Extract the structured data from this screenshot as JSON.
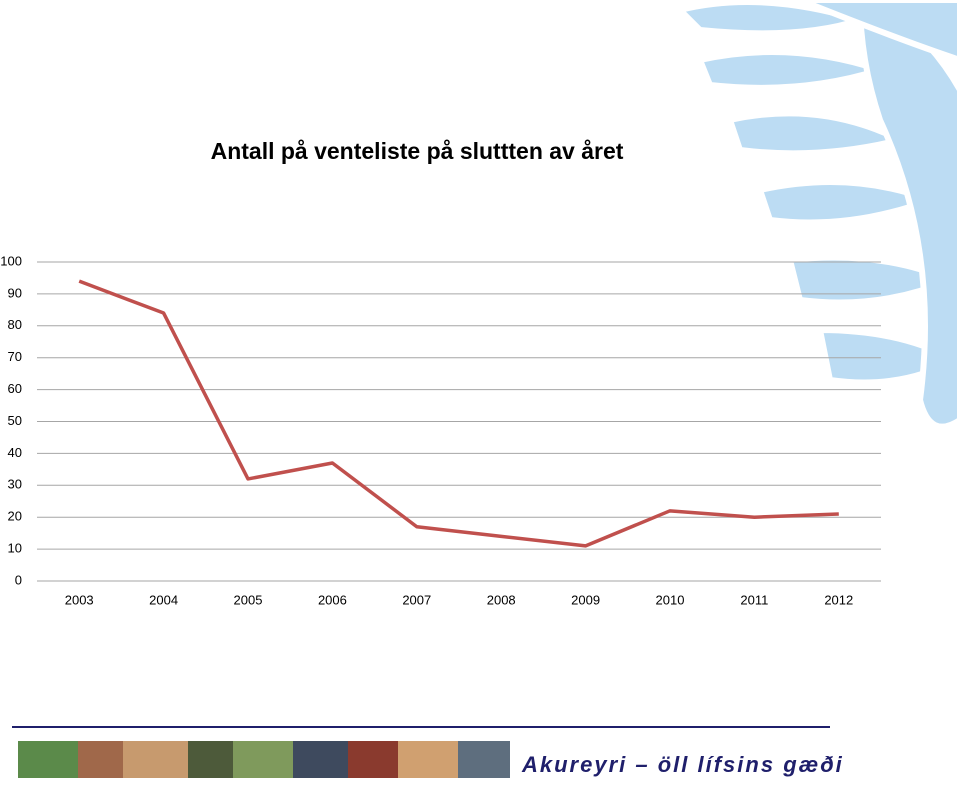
{
  "chart_data": {
    "type": "line",
    "title": "Antall på venteliste på sluttten av året",
    "categories": [
      "2003",
      "2004",
      "2005",
      "2006",
      "2007",
      "2008",
      "2009",
      "2010",
      "2011",
      "2012"
    ],
    "values": [
      94,
      84,
      32,
      37,
      17,
      14,
      11,
      22,
      20,
      21
    ],
    "color": "#c0504d",
    "ylim": [
      0,
      100
    ],
    "yticks": [
      0,
      10,
      20,
      30,
      40,
      50,
      60,
      70,
      80,
      90,
      100
    ],
    "grid": true
  },
  "footer": {
    "slogan": "Akureyri – öll lífsins gæði"
  }
}
